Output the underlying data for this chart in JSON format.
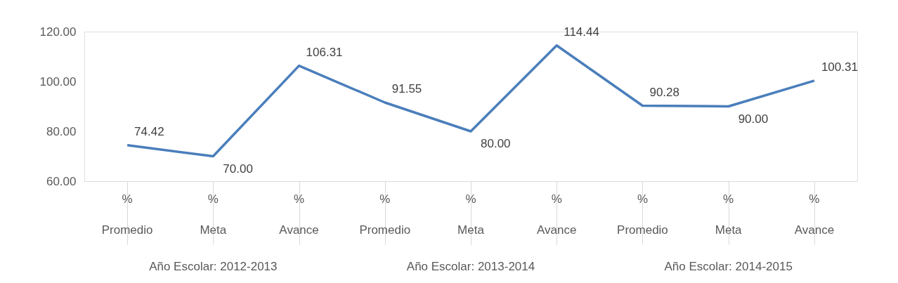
{
  "chart_data": {
    "type": "line",
    "categories": [
      "% Promedio",
      "% Meta",
      "% Avance",
      "% Promedio",
      "% Meta",
      "% Avance",
      "% Promedio",
      "% Meta",
      "% Avance"
    ],
    "series": [
      {
        "color": "#4a7ebb",
        "values": [
          74.42,
          70.0,
          106.31,
          91.55,
          80.0,
          114.44,
          90.28,
          90.0,
          100.31
        ],
        "value_labels": [
          "74.42",
          "70.00",
          "106.31",
          "91.55",
          "80.00",
          "114.44",
          "90.28",
          "90.00",
          "100.31"
        ]
      }
    ],
    "ylim": [
      60,
      120
    ],
    "yticks": [
      {
        "value": 60,
        "label": "60.00"
      },
      {
        "value": 80,
        "label": "80.00"
      },
      {
        "value": 100,
        "label": "100.00"
      },
      {
        "value": 120,
        "label": "120.00"
      }
    ],
    "annotations": [
      "Año Escolar: 2012-2013",
      "Año Escolar: 2013-2014",
      "Año Escolar: 2014-2015"
    ],
    "grid": false,
    "marker": "none",
    "line_style": "solid"
  }
}
